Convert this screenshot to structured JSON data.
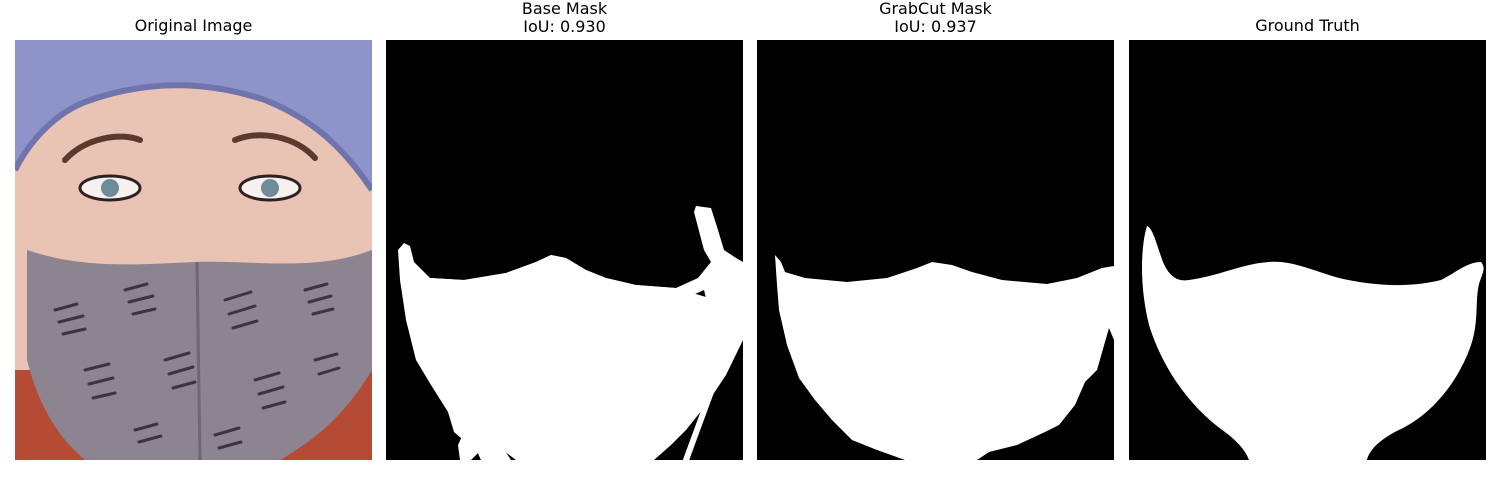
{
  "figure": {
    "panels": [
      {
        "title": "Original Image",
        "subtitle": ""
      },
      {
        "title": "Base Mask",
        "subtitle": "IoU: 0.930"
      },
      {
        "title": "GrabCut Mask",
        "subtitle": "IoU: 0.937"
      },
      {
        "title": "Ground Truth",
        "subtitle": ""
      }
    ]
  },
  "colors": {
    "hood": "#8e93c9",
    "skin": "#e9c3b3",
    "mask_fabric": "#8c8591",
    "hair": "#b54a35",
    "mask_fg": "#ffffff",
    "mask_bg": "#000000"
  }
}
